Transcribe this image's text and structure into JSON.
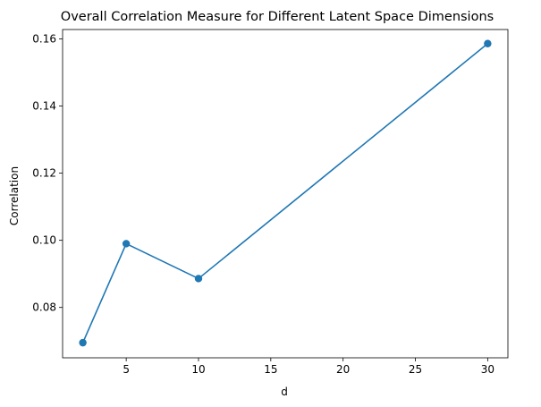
{
  "chart_data": {
    "type": "line",
    "title": "Overall Correlation Measure for Different Latent Space Dimensions",
    "xlabel": "d",
    "ylabel": "Correlation",
    "x": [
      2,
      5,
      10,
      30
    ],
    "series": [
      {
        "values": [
          0.0695,
          0.099,
          0.0886,
          0.1586
        ]
      }
    ],
    "xlim": [
      0.6,
      31.4
    ],
    "ylim": [
      0.065,
      0.1628
    ],
    "xticks": [
      5,
      10,
      15,
      20,
      25,
      30
    ],
    "xtick_labels": [
      "5",
      "10",
      "15",
      "20",
      "25",
      "30"
    ],
    "yticks": [
      0.08,
      0.1,
      0.12,
      0.14,
      0.16
    ],
    "ytick_labels": [
      "0.08",
      "0.10",
      "0.12",
      "0.14",
      "0.16"
    ],
    "grid": false,
    "markers": true,
    "colors": {
      "line": "#1f77b4",
      "axes": "#000000",
      "background": "#ffffff"
    }
  }
}
